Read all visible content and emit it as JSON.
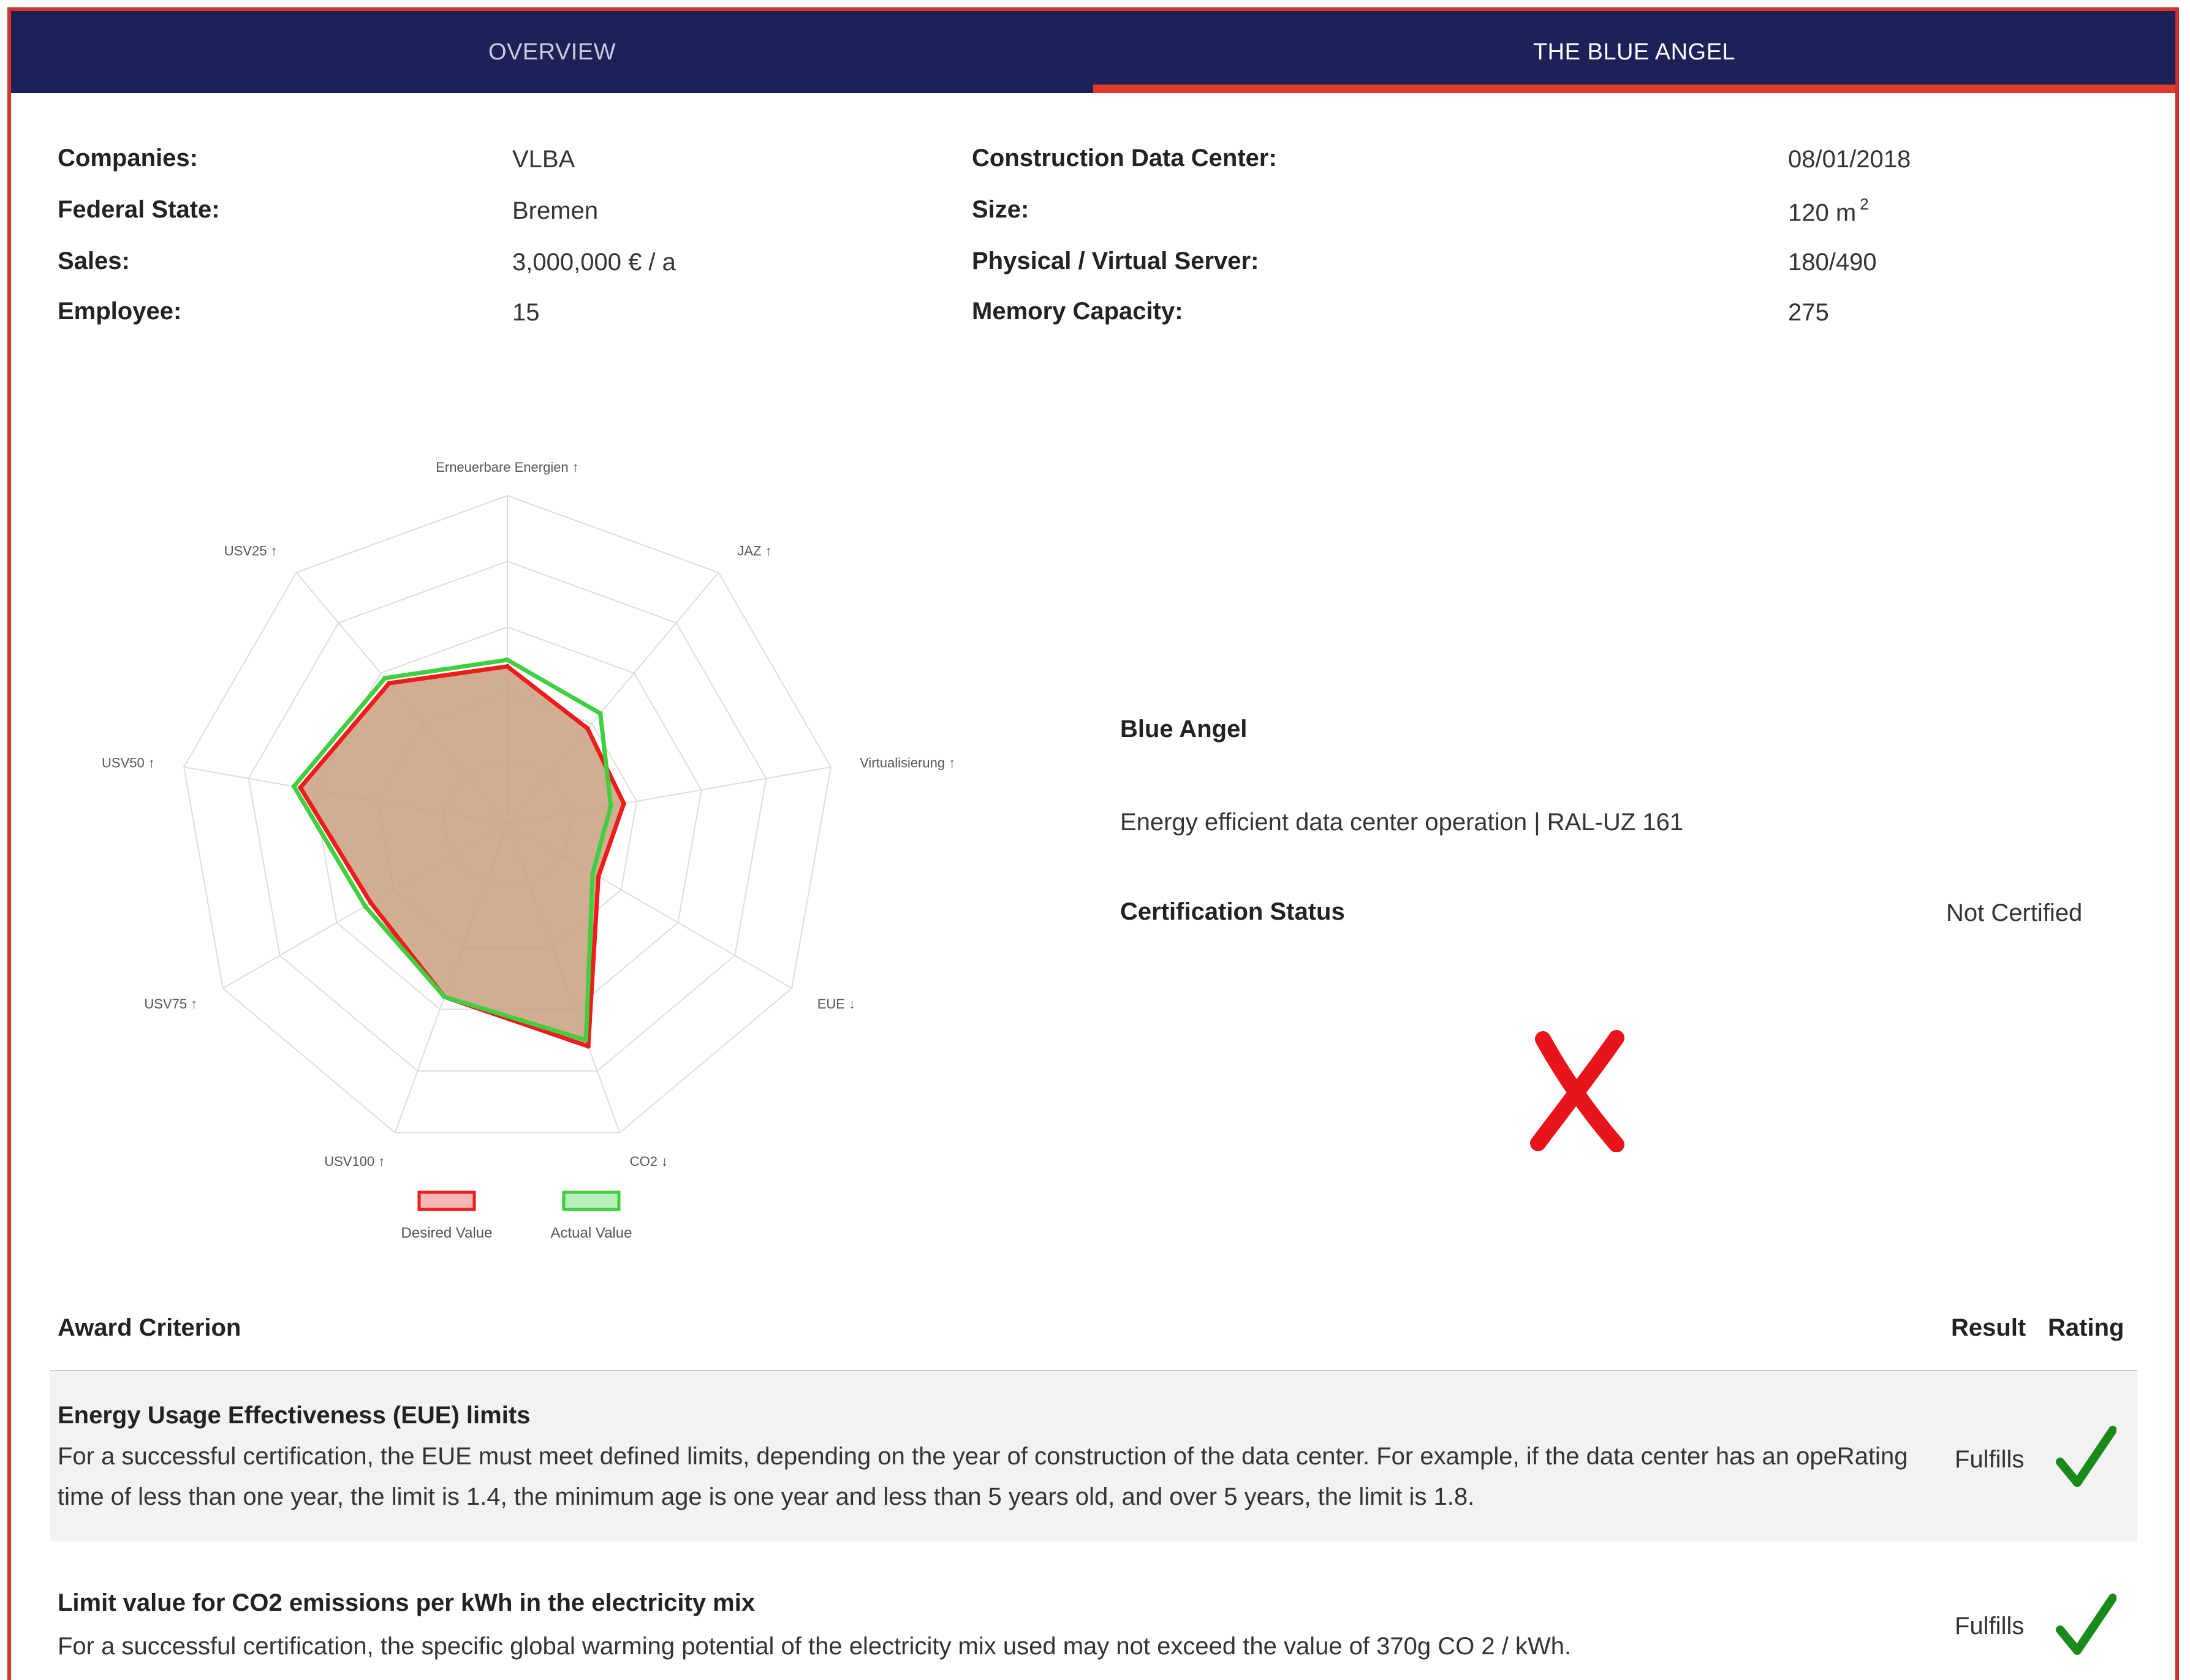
{
  "tabs": [
    {
      "label": "OVERVIEW"
    },
    {
      "label": "THE BLUE ANGEL"
    }
  ],
  "info_left": [
    {
      "label": "Companies:",
      "value": "VLBA"
    },
    {
      "label": "Federal State:",
      "value": "Bremen"
    },
    {
      "label": "Sales:",
      "value": "3,000,000 € / a"
    },
    {
      "label": "Employee:",
      "value": "15"
    }
  ],
  "info_right": [
    {
      "label": "Construction Data Center:",
      "value": "08/01/2018"
    },
    {
      "label": "Size:",
      "value": "120 m",
      "value_sup": "2"
    },
    {
      "label": "Physical / Virtual Server:",
      "value": "180/490"
    },
    {
      "label": "Memory Capacity:",
      "value": "275"
    }
  ],
  "chart_data": {
    "type": "radar",
    "axes": [
      "Erneuerbare Energien ↑",
      "JAZ ↑",
      "Virtualisierung ↑",
      "EUE ↓",
      "CO2 ↓",
      "USV100 ↑",
      "USV75 ↑",
      "USV50 ↑",
      "USV25 ↑"
    ],
    "rmax": 1,
    "rings": 5,
    "grid": true,
    "legend_position": "bottom",
    "series": [
      {
        "name": "Desired Value",
        "values": [
          0.48,
          0.38,
          0.36,
          0.32,
          0.72,
          0.56,
          0.48,
          0.64,
          0.56
        ],
        "stroke": "#ee1c1c",
        "fill": "#c9a07e"
      },
      {
        "name": "Actual Value",
        "values": [
          0.5,
          0.44,
          0.32,
          0.3,
          0.7,
          0.56,
          0.5,
          0.66,
          0.58
        ],
        "stroke": "#3fcf3f",
        "fill": "none"
      }
    ]
  },
  "blue_angel": {
    "title": "Blue Angel",
    "description": "Energy efficient data center operation | RAL-UZ 161",
    "status_label": "Certification Status",
    "status_value": "Not Certified"
  },
  "table": {
    "header_criterion": "Award Criterion",
    "header_result": "Result",
    "header_rating": "Rating",
    "rows": [
      {
        "title": "Energy Usage Effectiveness (EUE) limits",
        "description": "For a successful certification, the EUE must meet defined limits, depending on the year of construction of the data center. For example, if the data center has an opeRating time of less than one year, the limit is 1.4, the minimum age is one year and less than 5 years old, and over 5 years, the limit is 1.8.",
        "result": "Fulfills"
      },
      {
        "title": "Limit value for CO2 emissions per kWh in the electricity mix",
        "description": "For a successful certification, the specific global warming potential of the electricity mix used may not exceed the value of 370g CO 2 / kWh.",
        "result": "Fulfills"
      }
    ]
  },
  "colors": {
    "navbar": "#1e2058",
    "accent": "#e23a2b",
    "check": "#1a8a1a",
    "cross": "#e8141c"
  }
}
